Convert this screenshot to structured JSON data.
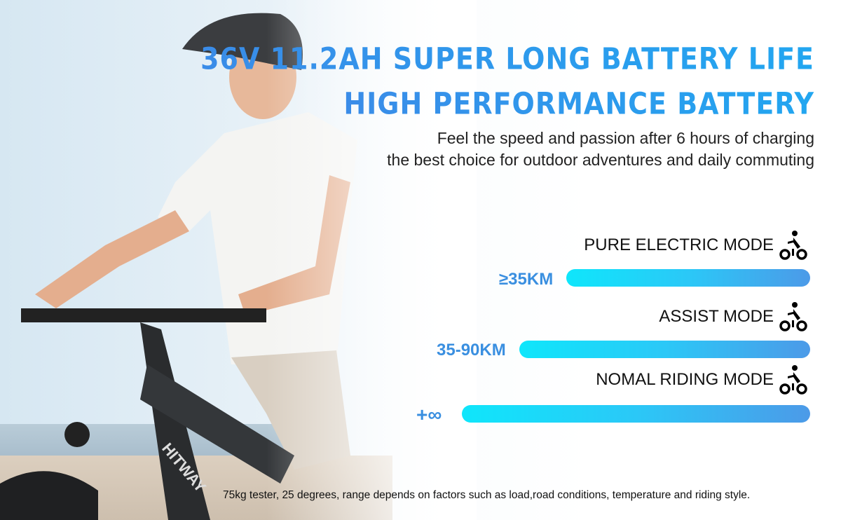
{
  "headline": "36V 11.2AH SUPER LONG BATTERY LIFE",
  "subheadline": "HIGH PERFORMANCE BATTERY",
  "description": [
    "Feel the speed and passion after 6 hours of charging",
    "the best choice for outdoor adventures and daily commuting"
  ],
  "modes": [
    {
      "label": "PURE ELECTRIC MODE",
      "range": "≥35KM",
      "icon": "cyclist-icon"
    },
    {
      "label": "ASSIST MODE",
      "range": "35-90KM",
      "icon": "cyclist-icon"
    },
    {
      "label": "NOMAL RIDING MODE",
      "range": "+∞",
      "icon": "cyclist-icon"
    }
  ],
  "bike_brand": "HITWAY",
  "footnote": "75kg tester, 25 degrees, range depends on factors such as load,road conditions, temperature and riding style.",
  "colors": {
    "title": "#2a8fe6",
    "bar_start": "#0fe6fb",
    "bar_end": "#4c9ae8",
    "range_text": "#3a8fe0"
  }
}
